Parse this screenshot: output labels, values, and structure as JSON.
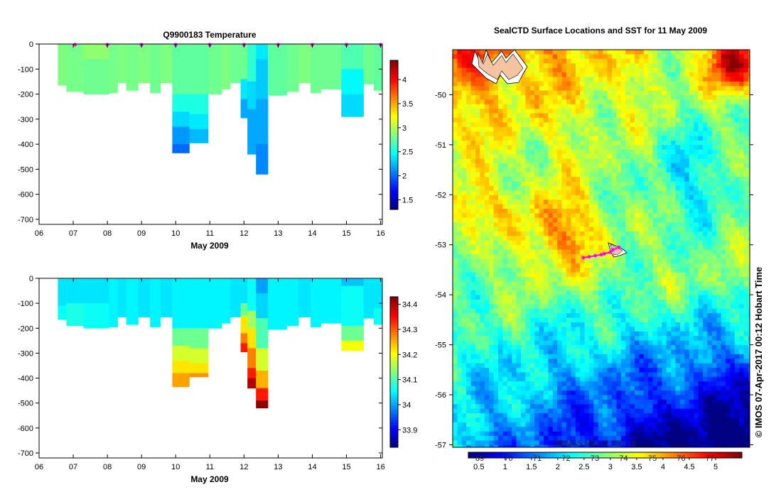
{
  "chart_data": [
    {
      "type": "heatmap",
      "title": "Q9900183  Temperature",
      "xlabel": "May 2009",
      "ylabel": "",
      "x_ticks": [
        "06",
        "07",
        "08",
        "09",
        "10",
        "11",
        "12",
        "13",
        "14",
        "15",
        "16"
      ],
      "xlim": [
        6,
        16.05
      ],
      "y_ticks": [
        0,
        -100,
        -200,
        -300,
        -400,
        -500,
        -600,
        -700
      ],
      "ylim": [
        -720,
        0
      ],
      "colorbar": {
        "ticks": [
          1.5,
          2,
          2.5,
          3,
          3.5,
          4
        ],
        "range": [
          1.3,
          4.4
        ]
      },
      "profile_markers": [
        7.05,
        8.0,
        9.0,
        10.0,
        11.0,
        12.0,
        13.0,
        14.0,
        15.0,
        16.0
      ],
      "profiles": [
        {
          "x0": 6.55,
          "x1": 6.8,
          "depth": 165,
          "layers": [
            [
              0,
              165,
              2.85
            ]
          ]
        },
        {
          "x0": 6.8,
          "x1": 7.3,
          "depth": 190,
          "layers": [
            [
              0,
              190,
              2.82
            ]
          ]
        },
        {
          "x0": 7.3,
          "x1": 8.05,
          "depth": 200,
          "layers": [
            [
              0,
              60,
              2.9
            ],
            [
              60,
              200,
              2.8
            ]
          ]
        },
        {
          "x0": 8.05,
          "x1": 8.3,
          "depth": 195,
          "layers": [
            [
              0,
              195,
              2.82
            ]
          ]
        },
        {
          "x0": 8.3,
          "x1": 8.55,
          "depth": 155,
          "layers": [
            [
              0,
              155,
              2.85
            ]
          ]
        },
        {
          "x0": 8.55,
          "x1": 8.9,
          "depth": 185,
          "layers": [
            [
              0,
              185,
              2.82
            ]
          ]
        },
        {
          "x0": 8.9,
          "x1": 9.25,
          "depth": 155,
          "layers": [
            [
              0,
              155,
              2.85
            ]
          ]
        },
        {
          "x0": 9.25,
          "x1": 9.55,
          "depth": 195,
          "layers": [
            [
              0,
              195,
              2.8
            ]
          ]
        },
        {
          "x0": 9.55,
          "x1": 9.9,
          "depth": 155,
          "layers": [
            [
              0,
              155,
              2.85
            ]
          ]
        },
        {
          "x0": 9.9,
          "x1": 10.4,
          "depth": 435,
          "layers": [
            [
              0,
              200,
              2.75
            ],
            [
              200,
              270,
              2.55
            ],
            [
              270,
              330,
              2.35
            ],
            [
              330,
              400,
              2.15
            ],
            [
              400,
              435,
              2.0
            ]
          ]
        },
        {
          "x0": 10.4,
          "x1": 10.95,
          "depth": 395,
          "layers": [
            [
              0,
              200,
              2.75
            ],
            [
              200,
              280,
              2.55
            ],
            [
              280,
              340,
              2.4
            ],
            [
              340,
              395,
              2.25
            ]
          ]
        },
        {
          "x0": 10.95,
          "x1": 11.35,
          "depth": 200,
          "layers": [
            [
              0,
              200,
              2.8
            ]
          ]
        },
        {
          "x0": 11.35,
          "x1": 11.6,
          "depth": 180,
          "layers": [
            [
              0,
              180,
              2.85
            ]
          ]
        },
        {
          "x0": 11.6,
          "x1": 11.9,
          "depth": 155,
          "layers": [
            [
              0,
              155,
              2.8
            ]
          ]
        },
        {
          "x0": 11.9,
          "x1": 12.1,
          "depth": 295,
          "layers": [
            [
              0,
              140,
              2.8
            ],
            [
              140,
              220,
              2.4
            ],
            [
              220,
              295,
              2.2
            ]
          ]
        },
        {
          "x0": 12.1,
          "x1": 12.35,
          "depth": 440,
          "layers": [
            [
              0,
              150,
              2.6
            ],
            [
              150,
              260,
              2.35
            ],
            [
              260,
              440,
              2.2
            ]
          ]
        },
        {
          "x0": 12.35,
          "x1": 12.7,
          "depth": 520,
          "layers": [
            [
              0,
              60,
              2.4
            ],
            [
              60,
              220,
              2.3
            ],
            [
              220,
              400,
              2.2
            ],
            [
              400,
              520,
              2.1
            ]
          ]
        },
        {
          "x0": 12.7,
          "x1": 13.25,
          "depth": 205,
          "layers": [
            [
              0,
              205,
              2.75
            ]
          ]
        },
        {
          "x0": 13.25,
          "x1": 13.6,
          "depth": 190,
          "layers": [
            [
              0,
              190,
              2.8
            ]
          ]
        },
        {
          "x0": 13.6,
          "x1": 13.95,
          "depth": 155,
          "layers": [
            [
              0,
              155,
              2.85
            ]
          ]
        },
        {
          "x0": 13.95,
          "x1": 14.25,
          "depth": 195,
          "layers": [
            [
              0,
              195,
              2.8
            ]
          ]
        },
        {
          "x0": 14.25,
          "x1": 14.85,
          "depth": 180,
          "layers": [
            [
              0,
              180,
              2.8
            ]
          ]
        },
        {
          "x0": 14.85,
          "x1": 15.5,
          "depth": 290,
          "layers": [
            [
              0,
              100,
              2.7
            ],
            [
              100,
              200,
              2.45
            ],
            [
              200,
              290,
              2.35
            ]
          ]
        },
        {
          "x0": 15.5,
          "x1": 15.8,
          "depth": 160,
          "layers": [
            [
              0,
              160,
              2.8
            ]
          ]
        },
        {
          "x0": 15.8,
          "x1": 16.05,
          "depth": 185,
          "layers": [
            [
              0,
              185,
              2.75
            ]
          ]
        }
      ]
    },
    {
      "type": "heatmap",
      "title": "",
      "xlabel": "May 2009",
      "ylabel": "",
      "x_ticks": [
        "06",
        "07",
        "08",
        "09",
        "10",
        "11",
        "12",
        "13",
        "14",
        "15",
        "16"
      ],
      "xlim": [
        6,
        16.05
      ],
      "y_ticks": [
        0,
        -100,
        -200,
        -300,
        -400,
        -500,
        -600,
        -700
      ],
      "ylim": [
        -720,
        0
      ],
      "colorbar": {
        "ticks": [
          33.9,
          34,
          34.1,
          34.2,
          34.3,
          34.4
        ],
        "range": [
          33.83,
          34.43
        ]
      },
      "profiles": [
        {
          "x0": 6.55,
          "x1": 6.8,
          "depth": 165,
          "layers": [
            [
              0,
              110,
              34.04
            ],
            [
              110,
              165,
              34.06
            ]
          ]
        },
        {
          "x0": 6.8,
          "x1": 7.3,
          "depth": 190,
          "layers": [
            [
              0,
              100,
              34.04
            ],
            [
              100,
              190,
              34.07
            ]
          ]
        },
        {
          "x0": 7.3,
          "x1": 8.05,
          "depth": 200,
          "layers": [
            [
              0,
              100,
              34.04
            ],
            [
              100,
              200,
              34.06
            ]
          ]
        },
        {
          "x0": 8.05,
          "x1": 8.3,
          "depth": 195,
          "layers": [
            [
              0,
              195,
              34.05
            ]
          ]
        },
        {
          "x0": 8.3,
          "x1": 8.55,
          "depth": 155,
          "layers": [
            [
              0,
              155,
              34.04
            ]
          ]
        },
        {
          "x0": 8.55,
          "x1": 8.9,
          "depth": 185,
          "layers": [
            [
              0,
              185,
              34.05
            ]
          ]
        },
        {
          "x0": 8.9,
          "x1": 9.25,
          "depth": 155,
          "layers": [
            [
              0,
              155,
              34.04
            ]
          ]
        },
        {
          "x0": 9.25,
          "x1": 9.55,
          "depth": 195,
          "layers": [
            [
              0,
              195,
              34.05
            ]
          ]
        },
        {
          "x0": 9.55,
          "x1": 9.9,
          "depth": 155,
          "layers": [
            [
              0,
              155,
              34.04
            ]
          ]
        },
        {
          "x0": 9.9,
          "x1": 10.4,
          "depth": 435,
          "layers": [
            [
              0,
              200,
              34.05
            ],
            [
              200,
              270,
              34.12
            ],
            [
              270,
              330,
              34.18
            ],
            [
              330,
              380,
              34.22
            ],
            [
              380,
              435,
              34.26
            ]
          ]
        },
        {
          "x0": 10.4,
          "x1": 10.95,
          "depth": 395,
          "layers": [
            [
              0,
              200,
              34.05
            ],
            [
              200,
              280,
              34.12
            ],
            [
              280,
              340,
              34.18
            ],
            [
              340,
              380,
              34.22
            ],
            [
              380,
              395,
              34.27
            ]
          ]
        },
        {
          "x0": 10.95,
          "x1": 11.35,
          "depth": 200,
          "layers": [
            [
              0,
              200,
              34.05
            ]
          ]
        },
        {
          "x0": 11.35,
          "x1": 11.6,
          "depth": 180,
          "layers": [
            [
              0,
              180,
              34.05
            ]
          ]
        },
        {
          "x0": 11.6,
          "x1": 11.9,
          "depth": 155,
          "layers": [
            [
              0,
              155,
              34.04
            ]
          ]
        },
        {
          "x0": 11.9,
          "x1": 12.1,
          "depth": 295,
          "layers": [
            [
              0,
              100,
              34.04
            ],
            [
              100,
              150,
              34.12
            ],
            [
              150,
              220,
              34.22
            ],
            [
              220,
              260,
              34.28
            ],
            [
              260,
              295,
              34.34
            ]
          ]
        },
        {
          "x0": 12.1,
          "x1": 12.35,
          "depth": 440,
          "layers": [
            [
              0,
              130,
              34.06
            ],
            [
              130,
              200,
              34.15
            ],
            [
              200,
              280,
              34.22
            ],
            [
              280,
              360,
              34.28
            ],
            [
              360,
              400,
              34.34
            ],
            [
              400,
              440,
              34.4
            ]
          ]
        },
        {
          "x0": 12.35,
          "x1": 12.7,
          "depth": 520,
          "layers": [
            [
              0,
              60,
              34.0
            ],
            [
              60,
              160,
              34.03
            ],
            [
              160,
              280,
              34.1
            ],
            [
              280,
              370,
              34.18
            ],
            [
              370,
              440,
              34.25
            ],
            [
              440,
              490,
              34.34
            ],
            [
              490,
              520,
              34.42
            ]
          ]
        },
        {
          "x0": 12.7,
          "x1": 13.25,
          "depth": 205,
          "layers": [
            [
              0,
              205,
              34.05
            ]
          ]
        },
        {
          "x0": 13.25,
          "x1": 13.6,
          "depth": 190,
          "layers": [
            [
              0,
              190,
              34.05
            ]
          ]
        },
        {
          "x0": 13.6,
          "x1": 13.95,
          "depth": 155,
          "layers": [
            [
              0,
              155,
              34.04
            ]
          ]
        },
        {
          "x0": 13.95,
          "x1": 14.25,
          "depth": 195,
          "layers": [
            [
              0,
              195,
              34.05
            ]
          ]
        },
        {
          "x0": 14.25,
          "x1": 14.85,
          "depth": 180,
          "layers": [
            [
              0,
              180,
              34.05
            ]
          ]
        },
        {
          "x0": 14.85,
          "x1": 15.5,
          "depth": 290,
          "layers": [
            [
              0,
              30,
              34.02
            ],
            [
              30,
              190,
              34.06
            ],
            [
              190,
              250,
              34.12
            ],
            [
              250,
              290,
              34.2
            ]
          ]
        },
        {
          "x0": 15.5,
          "x1": 15.8,
          "depth": 160,
          "layers": [
            [
              0,
              160,
              34.04
            ]
          ]
        },
        {
          "x0": 15.8,
          "x1": 16.05,
          "depth": 185,
          "layers": [
            [
              0,
              120,
              34.04
            ],
            [
              120,
              185,
              34.06
            ]
          ]
        }
      ]
    },
    {
      "type": "heatmap",
      "title": "SealCTD Surface Locations and SST for 11 May 2009",
      "xlabel": "",
      "ylabel": "",
      "y_ticks": [
        -50,
        -51,
        -52,
        -53,
        -54,
        -55,
        -56,
        -57
      ],
      "ylim": [
        -57.05,
        -49.1
      ],
      "colorbar": {
        "ticks": [
          0.5,
          1,
          1.5,
          2,
          2.5,
          3,
          3.5,
          4,
          4.5,
          5
        ],
        "range": [
          0.3,
          5.5
        ]
      },
      "colorbar_overprint": [
        "69",
        "70",
        "71",
        "72",
        "73",
        "74",
        "75",
        "76",
        "77"
      ],
      "source_label": "REMSS MW-IR SST v5",
      "credit": "© IMOS 07-Apr-2017 00:12 Hobart Time",
      "seal_track": [
        [
          -53.05,
          0.56
        ],
        [
          -53.1,
          0.54
        ],
        [
          -53.15,
          0.53
        ],
        [
          -53.18,
          0.51
        ],
        [
          -53.2,
          0.5
        ],
        [
          -53.22,
          0.48
        ],
        [
          -53.24,
          0.46
        ],
        [
          -53.26,
          0.44
        ]
      ]
    }
  ]
}
